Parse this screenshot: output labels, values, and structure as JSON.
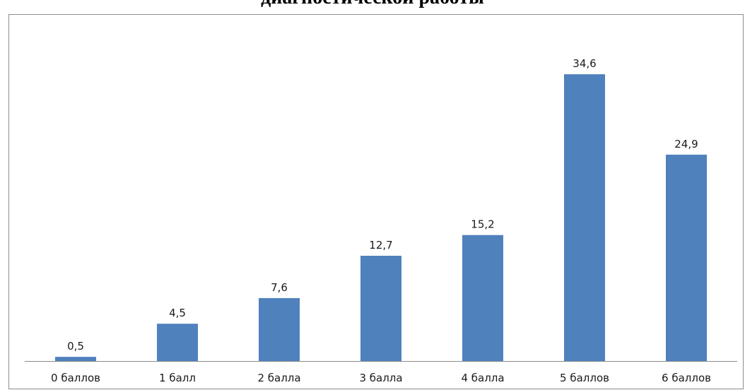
{
  "chart_data": {
    "type": "bar",
    "title": "диагностической работы",
    "categories": [
      "0 баллов",
      "1 балл",
      "2 балла",
      "3 балла",
      "4 балла",
      "5 баллов",
      "6 баллов"
    ],
    "values": [
      0.5,
      4.5,
      7.6,
      12.7,
      15.2,
      34.6,
      24.9
    ],
    "value_labels": [
      "0,5",
      "4,5",
      "7,6",
      "12,7",
      "15,2",
      "34,6",
      "24,9"
    ],
    "xlabel": "",
    "ylabel": "",
    "ylim": [
      0,
      36
    ],
    "grid": false,
    "legend": "none",
    "bar_color": "#4f81bd"
  }
}
